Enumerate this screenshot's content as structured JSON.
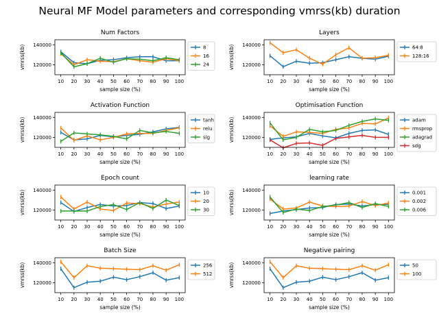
{
  "figure": {
    "title": "Neural MF Model parameters and corresponding vmrss(kb) duration"
  },
  "colors": {
    "blue": "#1f77b4",
    "orange": "#ff7f0e",
    "green": "#2ca02c",
    "red": "#d62728"
  },
  "chart_data": [
    {
      "type": "line",
      "title": "Num Factors",
      "xlabel": "sample size (%)",
      "ylabel": "vmrss(kb)",
      "x": [
        10,
        20,
        30,
        40,
        50,
        60,
        70,
        80,
        90,
        100
      ],
      "ylim": [
        110000,
        145000
      ],
      "yticks": [
        120000,
        140000
      ],
      "legend_position": "right",
      "series": [
        {
          "name": "8",
          "color": "#1f77b4",
          "values": [
            133000,
            122000,
            121000,
            124500,
            125000,
            127000,
            128000,
            128000,
            124000,
            124000
          ]
        },
        {
          "name": "16",
          "color": "#ff7f0e",
          "values": [
            131000,
            120000,
            125000,
            123500,
            123000,
            126000,
            124000,
            122500,
            126000,
            124000
          ]
        },
        {
          "name": "24",
          "color": "#2ca02c",
          "values": [
            132000,
            118000,
            121000,
            126500,
            122500,
            126000,
            125500,
            124000,
            127000,
            125000
          ]
        }
      ]
    },
    {
      "type": "line",
      "title": "Layers",
      "xlabel": "sample size (%)",
      "ylabel": "vmrss(kb)",
      "x": [
        10,
        20,
        30,
        40,
        50,
        60,
        70,
        80,
        90,
        100
      ],
      "ylim": [
        110000,
        145000
      ],
      "yticks": [
        120000,
        140000
      ],
      "legend_position": "right",
      "series": [
        {
          "name": "64:8",
          "color": "#1f77b4",
          "values": [
            129000,
            118000,
            123500,
            121500,
            122000,
            125000,
            128000,
            126500,
            125500,
            128500
          ]
        },
        {
          "name": "128:16",
          "color": "#ff7f0e",
          "values": [
            142000,
            132000,
            135000,
            126500,
            120500,
            130000,
            137000,
            126500,
            127000,
            129500
          ]
        }
      ]
    },
    {
      "type": "line",
      "title": "Activation Function",
      "xlabel": "sample size (%)",
      "ylabel": "vmrss(kb)",
      "x": [
        10,
        20,
        30,
        40,
        50,
        60,
        70,
        80,
        90,
        100
      ],
      "ylim": [
        110000,
        145000
      ],
      "yticks": [
        120000,
        140000
      ],
      "legend_position": "right",
      "series": [
        {
          "name": "tanh",
          "color": "#1f77b4",
          "values": [
            125000,
            117500,
            118500,
            122000,
            120500,
            122000,
            123000,
            125500,
            128500,
            130000
          ]
        },
        {
          "name": "relu",
          "color": "#ff7f0e",
          "values": [
            129500,
            117000,
            121500,
            117500,
            120000,
            123500,
            124000,
            124000,
            127000,
            129500
          ]
        },
        {
          "name": "sig",
          "color": "#2ca02c",
          "values": [
            116000,
            124500,
            123500,
            122500,
            121000,
            118500,
            127000,
            124500,
            126000,
            124000
          ]
        }
      ]
    },
    {
      "type": "line",
      "title": "Optimisation Function",
      "xlabel": "sample size (%)",
      "ylabel": "vmrss(kb)",
      "x": [
        10,
        20,
        30,
        40,
        50,
        60,
        70,
        80,
        90,
        100
      ],
      "ylim": [
        110000,
        145000
      ],
      "yticks": [
        120000,
        140000
      ],
      "legend_position": "right",
      "series": [
        {
          "name": "adam",
          "color": "#1f77b4",
          "values": [
            118000,
            119500,
            120500,
            124000,
            121500,
            119500,
            124000,
            127000,
            127500,
            123000
          ]
        },
        {
          "name": "rmsprop",
          "color": "#ff7f0e",
          "values": [
            131500,
            121000,
            125500,
            125000,
            124000,
            128000,
            129500,
            134000,
            133500,
            139500
          ]
        },
        {
          "name": "adagrad",
          "color": "#2ca02c",
          "values": [
            134500,
            117500,
            120000,
            128000,
            125500,
            127000,
            132000,
            136000,
            138500,
            137000
          ]
        },
        {
          "name": "sdg",
          "color": "#d62728",
          "values": [
            117500,
            109500,
            114000,
            114500,
            112000,
            119000,
            120500,
            122000,
            120000,
            120000
          ]
        }
      ]
    },
    {
      "type": "line",
      "title": "Epoch count",
      "xlabel": "sample size (%)",
      "ylabel": "vmrss(kb)",
      "x": [
        10,
        20,
        30,
        40,
        50,
        60,
        70,
        80,
        90,
        100
      ],
      "ylim": [
        110000,
        145000
      ],
      "yticks": [
        120000,
        140000
      ],
      "legend_position": "right",
      "series": [
        {
          "name": "10",
          "color": "#1f77b4",
          "values": [
            127500,
            118500,
            122500,
            125500,
            124000,
            124500,
            127500,
            126500,
            121500,
            124000
          ]
        },
        {
          "name": "20",
          "color": "#ff7f0e",
          "values": [
            133000,
            121000,
            128000,
            121000,
            119500,
            127000,
            126500,
            123000,
            126000,
            128000
          ]
        },
        {
          "name": "30",
          "color": "#2ca02c",
          "values": [
            119000,
            119000,
            119000,
            123500,
            125500,
            120500,
            127500,
            121500,
            130000,
            124500
          ]
        }
      ]
    },
    {
      "type": "line",
      "title": "learning rate",
      "xlabel": "sample size (%)",
      "ylabel": "vmrss(kb)",
      "x": [
        10,
        20,
        30,
        40,
        50,
        60,
        70,
        80,
        90,
        100
      ],
      "ylim": [
        110000,
        145000
      ],
      "yticks": [
        120000,
        140000
      ],
      "legend_position": "right",
      "series": [
        {
          "name": "0.001",
          "color": "#1f77b4",
          "values": [
            116500,
            119000,
            120500,
            122000,
            122500,
            125500,
            126000,
            124000,
            125500,
            125500
          ]
        },
        {
          "name": "0.002",
          "color": "#ff7f0e",
          "values": [
            131000,
            121000,
            122000,
            128000,
            124000,
            123500,
            124000,
            128500,
            124500,
            127000
          ]
        },
        {
          "name": "0.006",
          "color": "#2ca02c",
          "values": [
            133000,
            117500,
            121000,
            119500,
            123500,
            125000,
            127500,
            122500,
            126500,
            123500
          ]
        }
      ]
    },
    {
      "type": "line",
      "title": "Batch Size",
      "xlabel": "sample size (%)",
      "ylabel": "vmrss(kb)",
      "x": [
        10,
        20,
        30,
        40,
        50,
        60,
        70,
        80,
        90,
        100
      ],
      "ylim": [
        110000,
        145000
      ],
      "yticks": [
        120000,
        140000
      ],
      "legend_position": "right",
      "series": [
        {
          "name": "256",
          "color": "#1f77b4",
          "values": [
            134000,
            115000,
            120500,
            121500,
            125500,
            123000,
            126000,
            130000,
            122500,
            125000
          ]
        },
        {
          "name": "512",
          "color": "#ff7f0e",
          "values": [
            141000,
            125000,
            137000,
            134500,
            134000,
            133500,
            133000,
            137000,
            132500,
            138000
          ]
        }
      ]
    },
    {
      "type": "line",
      "title": "Negative pairing",
      "xlabel": "sample size (%)",
      "ylabel": "vmrss(kb)",
      "x": [
        10,
        20,
        30,
        40,
        50,
        60,
        70,
        80,
        90,
        100
      ],
      "ylim": [
        110000,
        145000
      ],
      "yticks": [
        120000,
        140000
      ],
      "legend_position": "right",
      "series": [
        {
          "name": "50",
          "color": "#1f77b4",
          "values": [
            134000,
            115000,
            120500,
            121500,
            125500,
            123000,
            126000,
            130000,
            122500,
            125000
          ]
        },
        {
          "name": "100",
          "color": "#ff7f0e",
          "values": [
            141000,
            125000,
            137000,
            134500,
            134000,
            133500,
            133000,
            137000,
            132500,
            138000
          ]
        }
      ]
    }
  ]
}
